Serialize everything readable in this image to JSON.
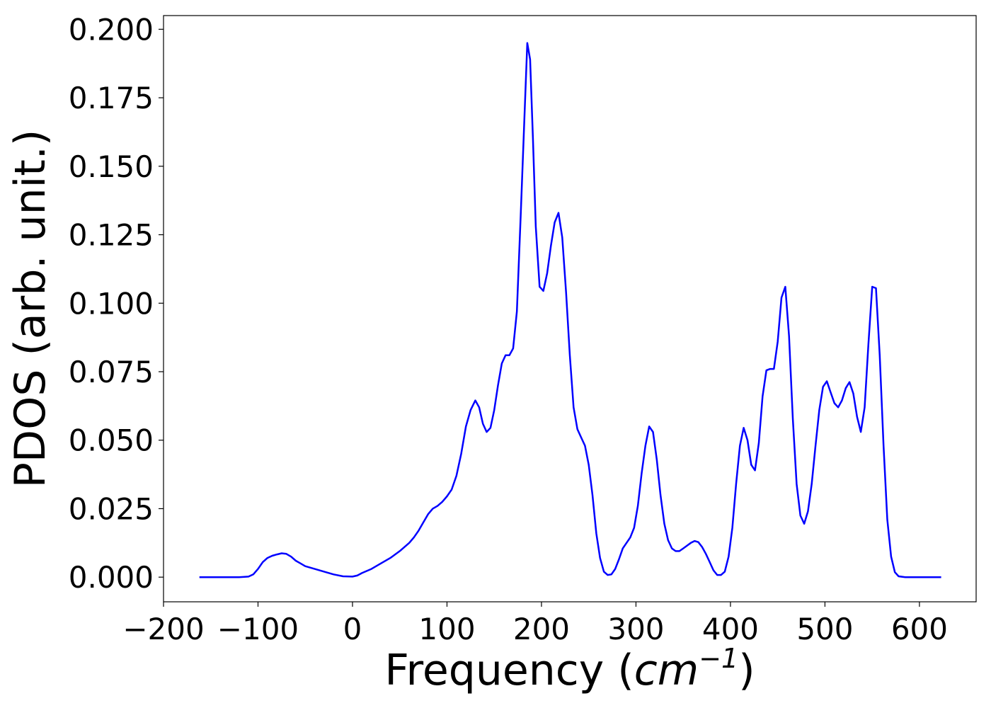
{
  "chart_data": {
    "type": "line",
    "title": "",
    "xlabel_main": "Frequency (",
    "xlabel_unit_base": "cm",
    "xlabel_unit_exp": "−1",
    "xlabel_close": ")",
    "ylabel": "PDOS (arb. unit.)",
    "xlim": [
      -200,
      660
    ],
    "ylim": [
      -0.009,
      0.205
    ],
    "x_ticks": [
      {
        "value": -200,
        "label": "−200"
      },
      {
        "value": -100,
        "label": "−100"
      },
      {
        "value": 0,
        "label": "0"
      },
      {
        "value": 100,
        "label": "100"
      },
      {
        "value": 200,
        "label": "200"
      },
      {
        "value": 300,
        "label": "300"
      },
      {
        "value": 400,
        "label": "400"
      },
      {
        "value": 500,
        "label": "500"
      },
      {
        "value": 600,
        "label": "600"
      }
    ],
    "y_ticks": [
      {
        "value": 0.0,
        "label": "0.000"
      },
      {
        "value": 0.025,
        "label": "0.025"
      },
      {
        "value": 0.05,
        "label": "0.050"
      },
      {
        "value": 0.075,
        "label": "0.075"
      },
      {
        "value": 0.1,
        "label": "0.100"
      },
      {
        "value": 0.125,
        "label": "0.125"
      },
      {
        "value": 0.15,
        "label": "0.150"
      },
      {
        "value": 0.175,
        "label": "0.175"
      },
      {
        "value": 0.2,
        "label": "0.200"
      }
    ],
    "grid": false,
    "series": [
      {
        "color": "#0000ff",
        "x": [
          -162,
          -140,
          -120,
          -110,
          -105,
          -100,
          -95,
          -90,
          -85,
          -80,
          -75,
          -70,
          -65,
          -60,
          -55,
          -50,
          -40,
          -30,
          -20,
          -10,
          0,
          5,
          10,
          20,
          30,
          40,
          50,
          60,
          65,
          70,
          75,
          80,
          85,
          90,
          95,
          100,
          105,
          110,
          115,
          120,
          125,
          130,
          134,
          138,
          142,
          146,
          150,
          154,
          158,
          162,
          166,
          170,
          174,
          178,
          182,
          185,
          188,
          191,
          194,
          198,
          202,
          206,
          210,
          214,
          218,
          222,
          226,
          230,
          234,
          238,
          242,
          246,
          250,
          254,
          258,
          262,
          266,
          270,
          274,
          278,
          282,
          286,
          290,
          294,
          298,
          302,
          306,
          310,
          314,
          318,
          322,
          326,
          330,
          334,
          338,
          342,
          346,
          350,
          354,
          358,
          362,
          366,
          370,
          374,
          378,
          382,
          386,
          390,
          394,
          398,
          402,
          406,
          410,
          414,
          418,
          422,
          426,
          430,
          434,
          438,
          442,
          446,
          450,
          454,
          458,
          462,
          466,
          470,
          474,
          478,
          482,
          486,
          490,
          494,
          498,
          502,
          506,
          510,
          514,
          518,
          522,
          526,
          530,
          534,
          538,
          542,
          546,
          550,
          554,
          558,
          562,
          566,
          570,
          574,
          578,
          585,
          600,
          623
        ],
        "y": [
          0.0,
          0.0,
          0.0,
          0.0002,
          0.001,
          0.003,
          0.0055,
          0.007,
          0.0078,
          0.0083,
          0.0087,
          0.0085,
          0.0075,
          0.006,
          0.005,
          0.004,
          0.003,
          0.002,
          0.001,
          0.0003,
          0.0002,
          0.0006,
          0.0015,
          0.003,
          0.005,
          0.007,
          0.0095,
          0.0125,
          0.0145,
          0.017,
          0.02,
          0.023,
          0.025,
          0.026,
          0.0275,
          0.0295,
          0.032,
          0.037,
          0.045,
          0.055,
          0.061,
          0.0645,
          0.062,
          0.056,
          0.053,
          0.0545,
          0.061,
          0.07,
          0.078,
          0.081,
          0.081,
          0.0835,
          0.097,
          0.132,
          0.168,
          0.195,
          0.189,
          0.16,
          0.128,
          0.106,
          0.1045,
          0.111,
          0.121,
          0.1295,
          0.133,
          0.124,
          0.104,
          0.081,
          0.062,
          0.054,
          0.051,
          0.048,
          0.041,
          0.03,
          0.016,
          0.007,
          0.002,
          0.0008,
          0.001,
          0.003,
          0.0065,
          0.0105,
          0.0125,
          0.0145,
          0.018,
          0.026,
          0.038,
          0.048,
          0.055,
          0.053,
          0.043,
          0.03,
          0.0195,
          0.0135,
          0.0105,
          0.0095,
          0.0095,
          0.0105,
          0.0115,
          0.0125,
          0.0132,
          0.0128,
          0.011,
          0.0085,
          0.0055,
          0.0025,
          0.0008,
          0.0008,
          0.002,
          0.0075,
          0.018,
          0.034,
          0.048,
          0.0545,
          0.05,
          0.041,
          0.039,
          0.049,
          0.066,
          0.0755,
          0.076,
          0.076,
          0.086,
          0.102,
          0.106,
          0.088,
          0.058,
          0.034,
          0.0225,
          0.0195,
          0.024,
          0.034,
          0.048,
          0.061,
          0.0695,
          0.0715,
          0.0675,
          0.0635,
          0.062,
          0.0645,
          0.069,
          0.0712,
          0.067,
          0.0585,
          0.053,
          0.062,
          0.085,
          0.106,
          0.1055,
          0.081,
          0.048,
          0.021,
          0.0075,
          0.0018,
          0.0003,
          0.0,
          0.0,
          0.0
        ]
      }
    ]
  }
}
